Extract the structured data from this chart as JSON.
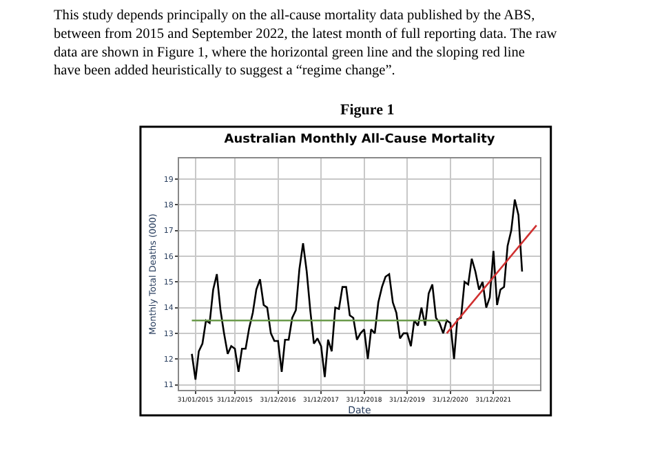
{
  "chart_data": {
    "type": "line",
    "title": "Australian Monthly All-Cause Mortality",
    "xlabel": "Date",
    "ylabel": "Monthly Total Deaths (000)",
    "annotations": [
      "This study depends principally on the all-cause mortality data published by the ABS, between from 2015 and September 2022, the latest month of full reporting data. The raw data are shown in Figure 1, where the horizontal green line and the sloping red line have been added heuristically to suggest a “regime change”.",
      "Figure 1"
    ],
    "x": [
      "2015-01",
      "2015-02",
      "2015-03",
      "2015-04",
      "2015-05",
      "2015-06",
      "2015-07",
      "2015-08",
      "2015-09",
      "2015-10",
      "2015-11",
      "2015-12",
      "2016-01",
      "2016-02",
      "2016-03",
      "2016-04",
      "2016-05",
      "2016-06",
      "2016-07",
      "2016-08",
      "2016-09",
      "2016-10",
      "2016-11",
      "2016-12",
      "2017-01",
      "2017-02",
      "2017-03",
      "2017-04",
      "2017-05",
      "2017-06",
      "2017-07",
      "2017-08",
      "2017-09",
      "2017-10",
      "2017-11",
      "2017-12",
      "2018-01",
      "2018-02",
      "2018-03",
      "2018-04",
      "2018-05",
      "2018-06",
      "2018-07",
      "2018-08",
      "2018-09",
      "2018-10",
      "2018-11",
      "2018-12",
      "2019-01",
      "2019-02",
      "2019-03",
      "2019-04",
      "2019-05",
      "2019-06",
      "2019-07",
      "2019-08",
      "2019-09",
      "2019-10",
      "2019-11",
      "2019-12",
      "2020-01",
      "2020-02",
      "2020-03",
      "2020-04",
      "2020-05",
      "2020-06",
      "2020-07",
      "2020-08",
      "2020-09",
      "2020-10",
      "2020-11",
      "2020-12",
      "2021-01",
      "2021-02",
      "2021-03",
      "2021-04",
      "2021-05",
      "2021-06",
      "2021-07",
      "2021-08",
      "2021-09",
      "2021-10",
      "2021-11",
      "2021-12",
      "2022-01",
      "2022-02",
      "2022-03",
      "2022-04",
      "2022-05",
      "2022-06",
      "2022-07",
      "2022-08",
      "2022-09"
    ],
    "series": [
      {
        "color": "#000000",
        "values": [
          12.2,
          11.2,
          12.3,
          12.6,
          13.5,
          13.4,
          14.7,
          15.3,
          13.9,
          13.0,
          12.2,
          12.5,
          12.4,
          11.5,
          12.4,
          12.4,
          13.2,
          13.8,
          14.7,
          15.1,
          14.1,
          14.0,
          13.0,
          12.7,
          12.7,
          11.5,
          12.75,
          12.75,
          13.6,
          13.9,
          15.5,
          16.5,
          15.4,
          13.9,
          12.6,
          12.8,
          12.5,
          11.3,
          12.75,
          12.3,
          14.0,
          13.95,
          14.8,
          14.8,
          13.7,
          13.6,
          12.75,
          13.0,
          13.15,
          12.0,
          13.15,
          13.0,
          14.2,
          14.8,
          15.2,
          15.3,
          14.2,
          13.8,
          12.8,
          13.0,
          13.0,
          12.5,
          13.5,
          13.3,
          14.0,
          13.3,
          14.55,
          14.9,
          13.6,
          13.4,
          13.0,
          13.5,
          13.4,
          12.0,
          13.55,
          13.6,
          15.0,
          14.9,
          15.9,
          15.4,
          14.7,
          15.0,
          14.0,
          14.4,
          16.2,
          14.1,
          14.7,
          14.8,
          16.4,
          17.0,
          18.2,
          17.6,
          15.4
        ]
      },
      {
        "color": "#6a9a4a",
        "x": [
          "2015-01",
          "2020-12"
        ],
        "values": [
          13.5,
          13.5
        ]
      },
      {
        "color": "#d03030",
        "x": [
          "2020-12",
          "2023-01"
        ],
        "values": [
          13.0,
          17.2
        ]
      }
    ],
    "xlim": [
      "2014-09-15",
      "2023-01-31"
    ],
    "xticks": [
      {
        "value": "2015-01-31",
        "label": "31/01/2015"
      },
      {
        "value": "2015-12-31",
        "label": "31/12/2015"
      },
      {
        "value": "2016-12-31",
        "label": "31/12/2016"
      },
      {
        "value": "2017-12-31",
        "label": "31/12/2017"
      },
      {
        "value": "2018-12-31",
        "label": "31/12/2018"
      },
      {
        "value": "2019-12-31",
        "label": "31/12/2019"
      },
      {
        "value": "2020-12-31",
        "label": "31/12/2020"
      },
      {
        "value": "2021-12-31",
        "label": "31/12/2021"
      }
    ],
    "ylim": [
      10.8,
      19.8
    ],
    "yticks": [
      11,
      12,
      13,
      14,
      15,
      16,
      17,
      18,
      19
    ],
    "grid": true,
    "marker": "none",
    "line_style": "solid"
  }
}
